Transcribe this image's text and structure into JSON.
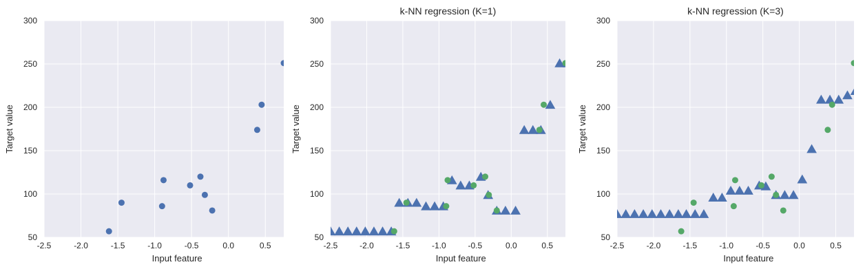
{
  "colors": {
    "plot_background": "#eaeaf2",
    "grid": "#ffffff",
    "train_points": "#4c72b0",
    "predictions": "#4c72b0",
    "test_points": "#55a868"
  },
  "chart_data": [
    {
      "type": "scatter",
      "title": "",
      "xlabel": "Input feature",
      "ylabel": "Target value",
      "xlim": [
        -2.5,
        0.75
      ],
      "ylim": [
        50,
        300
      ],
      "xticks": [
        "-2.5",
        "-2.0",
        "-1.5",
        "-1.0",
        "-0.5",
        "0.0",
        "0.5"
      ],
      "yticks": [
        "50",
        "100",
        "150",
        "200",
        "250",
        "300"
      ],
      "grid": true,
      "series": [
        {
          "marker": "circle",
          "color": "#4c72b0",
          "points": [
            [
              -1.62,
              57
            ],
            [
              -1.45,
              90
            ],
            [
              -0.9,
              86
            ],
            [
              -0.88,
              116
            ],
            [
              -0.52,
              110
            ],
            [
              -0.38,
              120
            ],
            [
              -0.32,
              99
            ],
            [
              -0.22,
              81
            ],
            [
              0.39,
              174
            ],
            [
              0.45,
              203
            ],
            [
              0.75,
              251
            ]
          ]
        }
      ]
    },
    {
      "type": "scatter",
      "title": "k-NN regression (K=1)",
      "xlabel": "Input feature",
      "ylabel": "Target value",
      "xlim": [
        -2.5,
        0.75
      ],
      "ylim": [
        50,
        300
      ],
      "xticks": [
        "-2.5",
        "-2.0",
        "-1.5",
        "-1.0",
        "-0.5",
        "0.0",
        "0.5"
      ],
      "yticks": [
        "50",
        "100",
        "150",
        "200",
        "250",
        "300"
      ],
      "grid": true,
      "series": [
        {
          "marker": "triangle",
          "color": "#4c72b0",
          "points": [
            [
              -2.5,
              57
            ],
            [
              -2.38,
              57
            ],
            [
              -2.26,
              57
            ],
            [
              -2.14,
              57
            ],
            [
              -2.02,
              57
            ],
            [
              -1.9,
              57
            ],
            [
              -1.78,
              57
            ],
            [
              -1.66,
              57
            ],
            [
              -1.55,
              90
            ],
            [
              -1.43,
              90
            ],
            [
              -1.31,
              90
            ],
            [
              -1.18,
              86
            ],
            [
              -1.06,
              86
            ],
            [
              -0.94,
              86
            ],
            [
              -0.82,
              116
            ],
            [
              -0.7,
              110
            ],
            [
              -0.58,
              110
            ],
            [
              -0.42,
              120
            ],
            [
              -0.32,
              99
            ],
            [
              -0.2,
              81
            ],
            [
              -0.08,
              81
            ],
            [
              0.06,
              81
            ],
            [
              0.18,
              174
            ],
            [
              0.3,
              174
            ],
            [
              0.41,
              174
            ],
            [
              0.54,
              203
            ],
            [
              0.67,
              251
            ],
            [
              0.78,
              251
            ]
          ]
        },
        {
          "marker": "circle",
          "color": "#55a868",
          "points": [
            [
              -1.62,
              57
            ],
            [
              -1.45,
              90
            ],
            [
              -0.9,
              86
            ],
            [
              -0.88,
              116
            ],
            [
              -0.52,
              110
            ],
            [
              -0.36,
              120
            ],
            [
              -0.31,
              99
            ],
            [
              -0.2,
              81
            ],
            [
              0.39,
              174
            ],
            [
              0.45,
              203
            ],
            [
              0.75,
              251
            ]
          ]
        }
      ]
    },
    {
      "type": "scatter",
      "title": "k-NN regression (K=3)",
      "xlabel": "Input feature",
      "ylabel": "Target value",
      "xlim": [
        -2.5,
        0.75
      ],
      "ylim": [
        50,
        300
      ],
      "xticks": [
        "-2.5",
        "-2.0",
        "-1.5",
        "-1.0",
        "-0.5",
        "0.0",
        "0.5"
      ],
      "yticks": [
        "50",
        "100",
        "150",
        "200",
        "250",
        "300"
      ],
      "grid": true,
      "series": [
        {
          "marker": "triangle",
          "color": "#4c72b0",
          "points": [
            [
              -2.5,
              77
            ],
            [
              -2.38,
              77
            ],
            [
              -2.26,
              77
            ],
            [
              -2.14,
              77
            ],
            [
              -2.02,
              77
            ],
            [
              -1.9,
              77
            ],
            [
              -1.78,
              77
            ],
            [
              -1.66,
              77
            ],
            [
              -1.55,
              77
            ],
            [
              -1.43,
              77
            ],
            [
              -1.31,
              77
            ],
            [
              -1.18,
              96
            ],
            [
              -1.06,
              96
            ],
            [
              -0.94,
              104
            ],
            [
              -0.82,
              104
            ],
            [
              -0.7,
              104
            ],
            [
              -0.55,
              110
            ],
            [
              -0.46,
              109
            ],
            [
              -0.32,
              99
            ],
            [
              -0.2,
              99
            ],
            [
              -0.08,
              99
            ],
            [
              0.04,
              117
            ],
            [
              0.17,
              152
            ],
            [
              0.3,
              209
            ],
            [
              0.42,
              209
            ],
            [
              0.54,
              209
            ],
            [
              0.66,
              214
            ],
            [
              0.77,
              219
            ]
          ]
        },
        {
          "marker": "circle",
          "color": "#55a868",
          "points": [
            [
              -1.62,
              57
            ],
            [
              -1.45,
              90
            ],
            [
              -0.9,
              86
            ],
            [
              -0.88,
              116
            ],
            [
              -0.52,
              110
            ],
            [
              -0.38,
              120
            ],
            [
              -0.32,
              99
            ],
            [
              -0.22,
              81
            ],
            [
              0.39,
              174
            ],
            [
              0.45,
              203
            ],
            [
              0.75,
              251
            ]
          ]
        }
      ]
    }
  ]
}
